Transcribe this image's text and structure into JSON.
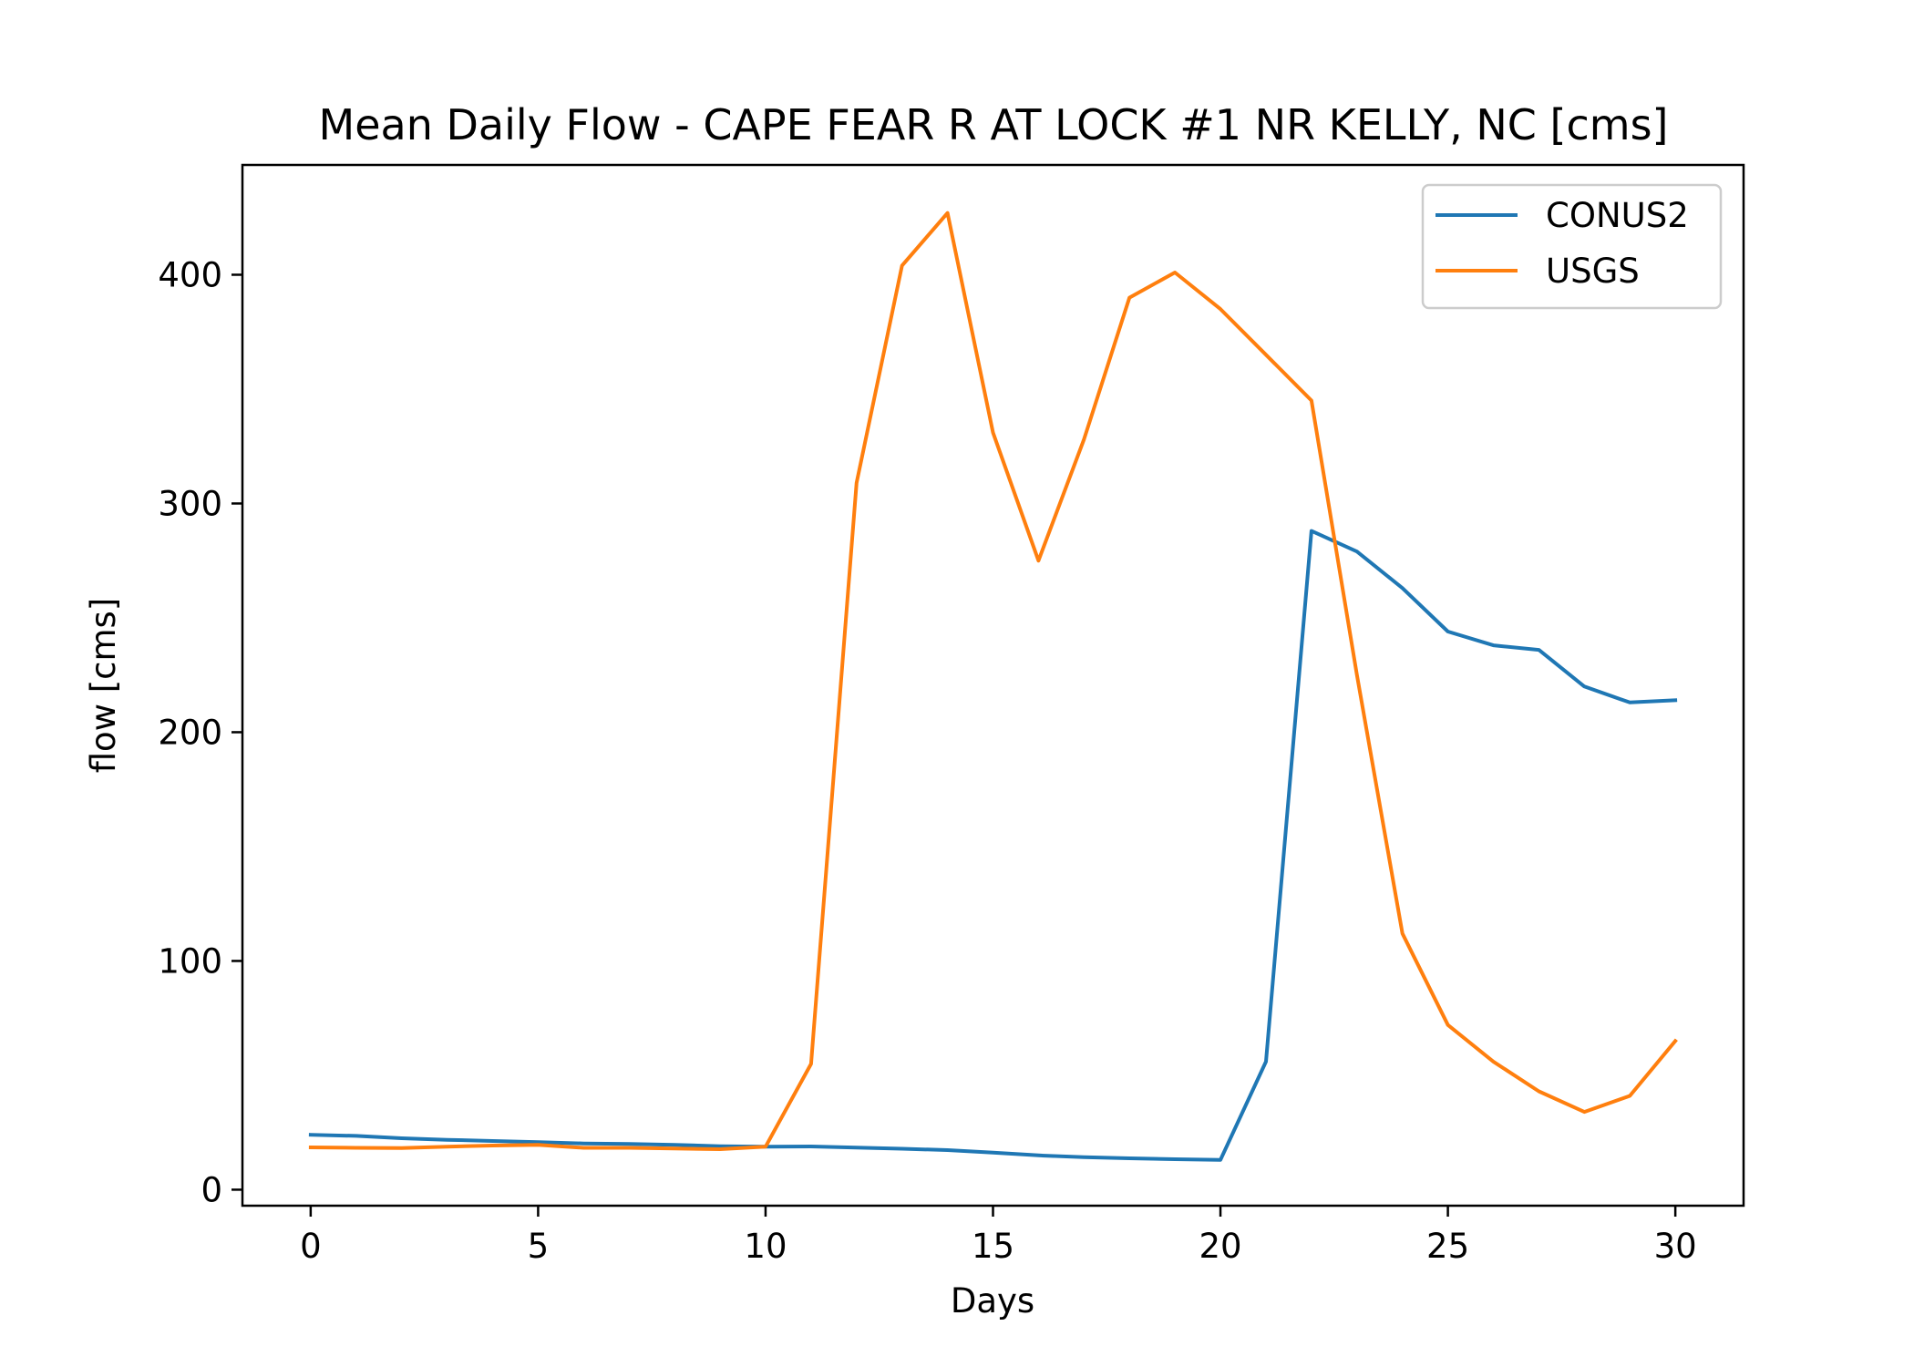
{
  "chart_data": {
    "type": "line",
    "title": "Mean Daily Flow - CAPE FEAR R AT LOCK #1 NR KELLY, NC [cms]",
    "xlabel": "Days",
    "ylabel": "flow [cms]",
    "xlim": [
      -1.5,
      31.5
    ],
    "ylim": [
      -7,
      448
    ],
    "xticks": [
      0,
      5,
      10,
      15,
      20,
      25,
      30
    ],
    "xtick_labels": [
      "0",
      "5",
      "10",
      "15",
      "20",
      "25",
      "30"
    ],
    "yticks": [
      0,
      100,
      200,
      300,
      400
    ],
    "ytick_labels": [
      "0",
      "100",
      "200",
      "300",
      "400"
    ],
    "grid": false,
    "legend_position": "top-right",
    "x": [
      0,
      1,
      2,
      3,
      4,
      5,
      6,
      7,
      8,
      9,
      10,
      11,
      12,
      13,
      14,
      15,
      16,
      17,
      18,
      19,
      20,
      21,
      22,
      23,
      24,
      25,
      26,
      27,
      28,
      29,
      30
    ],
    "series": [
      {
        "name": "CONUS2",
        "color": "#1f77b4",
        "values": [
          24,
          23.5,
          22.5,
          21.8,
          21.3,
          20.8,
          20.2,
          20,
          19.6,
          19,
          18.8,
          18.9,
          18.4,
          17.9,
          17.3,
          16.2,
          15,
          14.2,
          13.7,
          13.3,
          13,
          56,
          288,
          279,
          263,
          244,
          238,
          236,
          220,
          213,
          214
        ]
      },
      {
        "name": "USGS",
        "color": "#ff7f0e",
        "values": [
          18.5,
          18.3,
          18.2,
          18.8,
          19.3,
          19.6,
          18.3,
          18.3,
          18,
          17.7,
          18.8,
          55,
          309,
          404,
          427,
          331,
          275,
          328,
          390,
          401,
          385,
          365,
          345,
          225,
          112,
          72,
          56,
          43,
          34,
          41,
          65
        ]
      }
    ]
  }
}
